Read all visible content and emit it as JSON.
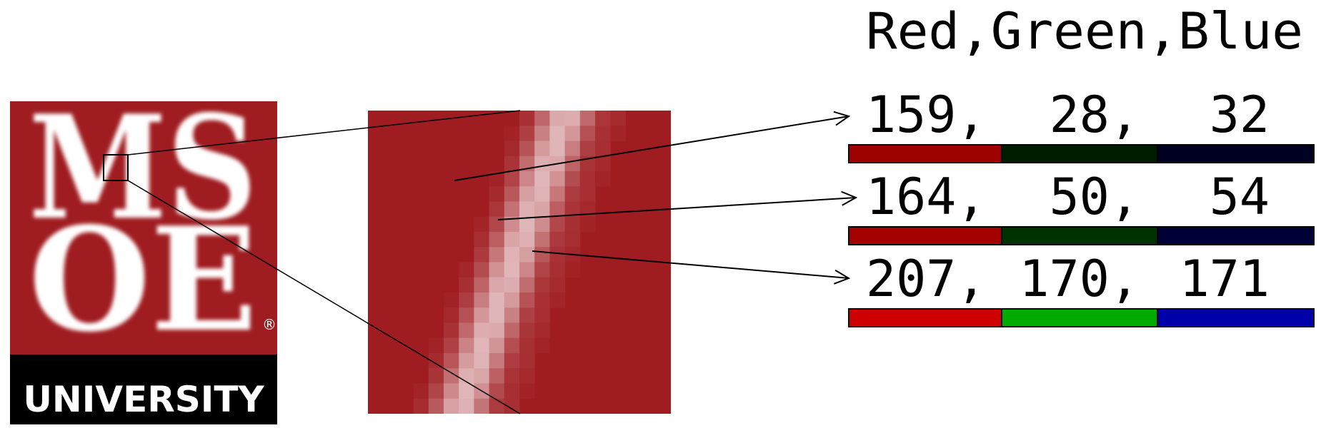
{
  "logo": {
    "letters": "MSOE",
    "university_label": "UNIVERSITY",
    "registered_mark": "®"
  },
  "colors": {
    "maroon": "#9f1c20",
    "logo_text": "#ffffff",
    "black": "#000000"
  },
  "header": {
    "title": "Red,Green,Blue"
  },
  "pixels": [
    {
      "label": "159,  28,  32",
      "red_text": "159,",
      "green_text": "28,",
      "blue_text": "32",
      "rgb": [
        159,
        28,
        32
      ],
      "bar_colors": [
        "#9f0000",
        "#001c00",
        "#000020"
      ]
    },
    {
      "label": "164,  50,  54",
      "red_text": "164,",
      "green_text": "50,",
      "blue_text": "54",
      "rgb": [
        164,
        50,
        54
      ],
      "bar_colors": [
        "#a40000",
        "#003200",
        "#000036"
      ]
    },
    {
      "label": "207, 170, 171",
      "red_text": "207,",
      "green_text": "170,",
      "blue_text": "171",
      "rgb": [
        207,
        170,
        171
      ],
      "bar_colors": [
        "#cf0000",
        "#00aa00",
        "#0000ab"
      ]
    }
  ]
}
